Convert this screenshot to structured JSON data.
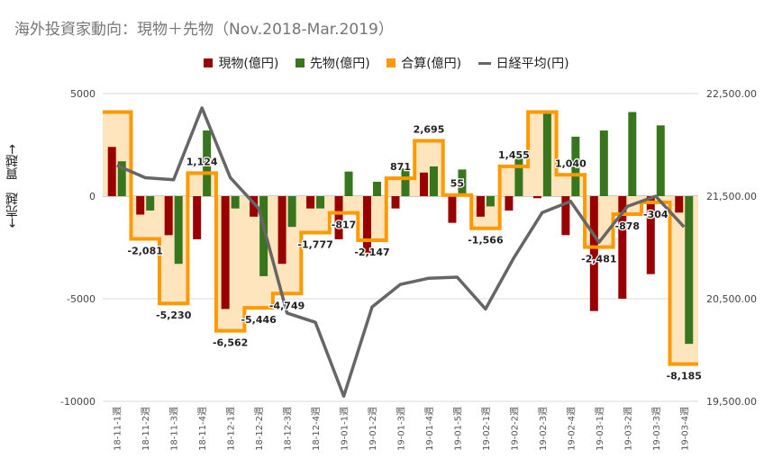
{
  "chart_data": {
    "type": "bar",
    "title": "海外投資家動向：現物＋先物（Nov.2018-Mar.2019）",
    "ylabel": "←売越　買越→",
    "ylim_left": [
      -10000,
      5000
    ],
    "yticks_left": [
      "5000",
      "0",
      "-5000",
      "-10000"
    ],
    "ylim_right": [
      19500,
      22500
    ],
    "yticks_right": [
      "22,500.00",
      "21,500.00",
      "20,500.00",
      "19,500.00"
    ],
    "grid": true,
    "legend_position": "top",
    "categories": [
      "18-11-1週",
      "18-11-2週",
      "18-11-3週",
      "18-11-4週",
      "18-12-1週",
      "18-12-2週",
      "18-12-3週",
      "18-12-4週",
      "19-01-1週",
      "19-01-2週",
      "19-01-3週",
      "19-01-4週",
      "19-01-5週",
      "19-02-1週",
      "19-02-2週",
      "19-02-3週",
      "19-02-4週",
      "19-03-1週",
      "19-03-2週",
      "19-03-3週",
      "19-03-4週"
    ],
    "series": [
      {
        "name": "現物(億円)",
        "type": "bar",
        "color": "#990000",
        "values": [
          2400,
          -900,
          -1900,
          -2100,
          -5500,
          -1000,
          -3300,
          -600,
          -2100,
          -2900,
          -600,
          1150,
          -1300,
          -1000,
          -700,
          -100,
          -1900,
          -5600,
          -5000,
          -3800,
          -800
        ]
      },
      {
        "name": "先物(億円)",
        "type": "bar",
        "color": "#38761d",
        "values": [
          1700,
          -700,
          -3300,
          3200,
          -600,
          -3900,
          -1500,
          -600,
          1200,
          700,
          1350,
          1450,
          1300,
          -500,
          2100,
          4100,
          2900,
          3200,
          4100,
          3450,
          -7200
        ]
      },
      {
        "name": "合算(億円)",
        "type": "step-area",
        "color": "#ff9900",
        "values": [
          4100,
          -2081,
          -5230,
          1124,
          -6562,
          -5446,
          -4749,
          -1777,
          -817,
          -2147,
          871,
          2695,
          55,
          -1566,
          1455,
          4100,
          1040,
          -2481,
          -878,
          -304,
          -8185
        ],
        "labels": [
          "",
          "-2,081",
          "-5,230",
          "1,124",
          "-6,562",
          "-5,446",
          "-4,749",
          "-1,777",
          "-817",
          "-2,147",
          "871",
          "2,695",
          "55",
          "-1,566",
          "1,455",
          "",
          "1,040",
          "-2,481",
          "-878",
          "-304",
          "-8,185"
        ]
      },
      {
        "name": "日経平均(円)",
        "type": "line",
        "color": "#666666",
        "axis": "right",
        "values": [
          21800,
          21680,
          21660,
          22360,
          21680,
          21380,
          20360,
          20270,
          19550,
          20420,
          20640,
          20700,
          20710,
          20400,
          20900,
          21340,
          21450,
          21050,
          21400,
          21500,
          21200
        ]
      }
    ]
  }
}
